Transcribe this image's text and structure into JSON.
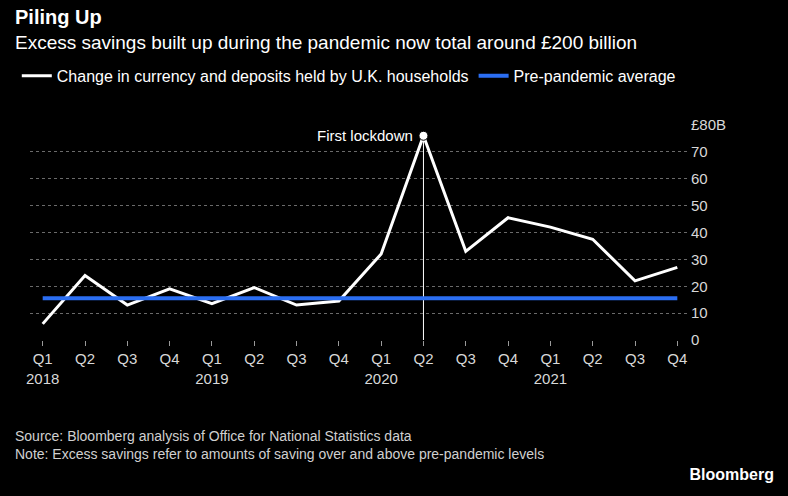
{
  "chart_data": {
    "type": "line",
    "title": "Piling Up",
    "subtitle": "Excess savings built up during the pandemic now total around £200 billion",
    "categories": [
      "Q1",
      "Q2",
      "Q3",
      "Q4",
      "Q1",
      "Q2",
      "Q3",
      "Q4",
      "Q1",
      "Q2",
      "Q3",
      "Q4",
      "Q1",
      "Q2",
      "Q3",
      "Q4"
    ],
    "year_labels": [
      "2018",
      null,
      null,
      null,
      "2019",
      null,
      null,
      null,
      "2020",
      null,
      null,
      null,
      "2021",
      null,
      null,
      null
    ],
    "series": [
      {
        "name": "Change in currency and deposits held by U.K. households",
        "color": "#ffffff",
        "line_style": "solid",
        "values": [
          6,
          24,
          13,
          19,
          13.5,
          19.5,
          13,
          14.5,
          32,
          76,
          33,
          45.5,
          42,
          37.5,
          22,
          27
        ]
      },
      {
        "name": "Pre-pandemic average",
        "color": "#2b6ef2",
        "line_style": "solid",
        "values": [
          15.5,
          15.5,
          15.5,
          15.5,
          15.5,
          15.5,
          15.5,
          15.5,
          15.5,
          15.5,
          15.5,
          15.5,
          15.5,
          15.5,
          15.5,
          15.5
        ]
      }
    ],
    "ylim": [
      0,
      80
    ],
    "yticks": [
      0,
      10,
      20,
      30,
      40,
      50,
      60,
      70,
      {
        "value": 80,
        "label": "£80B"
      }
    ],
    "grid": true,
    "legend": "top-left",
    "annotations": [
      {
        "text": "First lockdown",
        "category": "Q2",
        "year": "2020"
      }
    ],
    "source": "Source: Bloomberg analysis of Office for National Statistics data",
    "note": "Note: Excess savings refer to amounts of saving over and above pre-pandemic levels",
    "logo": "Bloomberg"
  }
}
